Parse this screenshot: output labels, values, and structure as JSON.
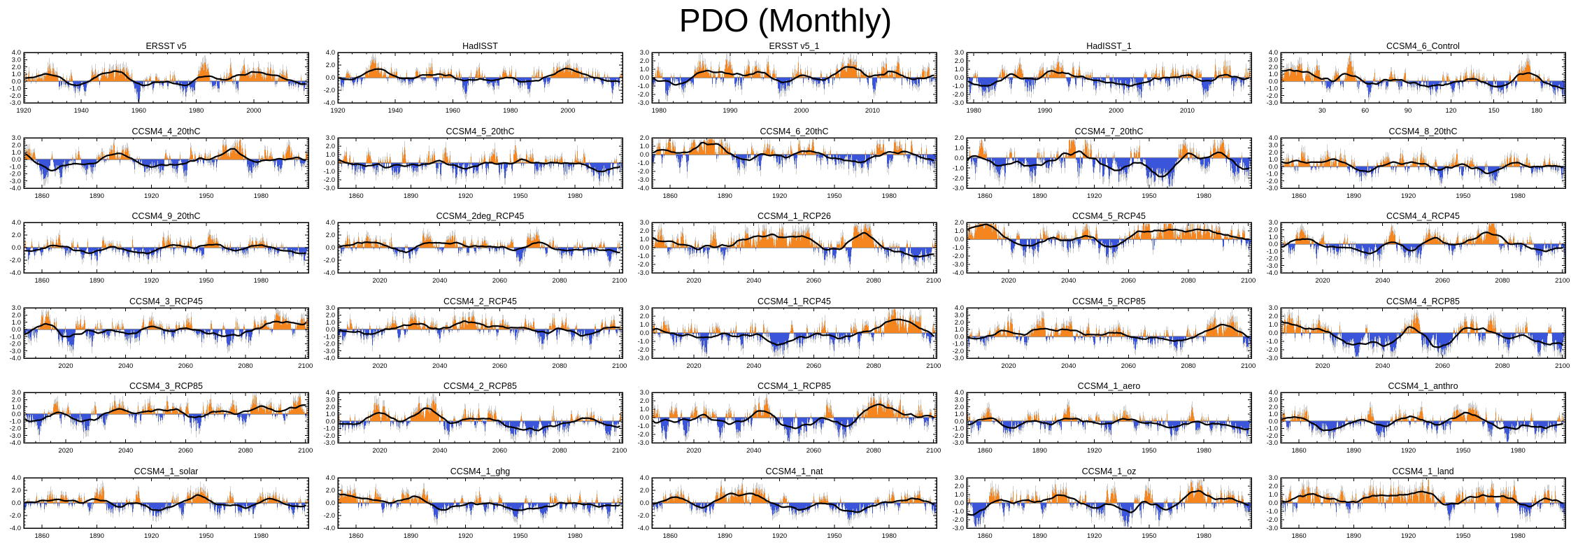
{
  "page": {
    "title": "PDO (Monthly)"
  },
  "colors": {
    "positive_bars": "#F5861F",
    "negative_bars": "#3A55D9",
    "raw_whisker": "#CFCFCF",
    "smooth_line": "#000000",
    "zero_line": "#999999",
    "frame": "#000000"
  },
  "chart_data": {
    "type": "bar+line",
    "layout": "6x5 grid of monthly PDO index panels",
    "title": "PDO (Monthly)",
    "grid": {
      "rows": 6,
      "cols": 5
    },
    "series_legend": [
      {
        "name": "monthly PDO anomaly (positive)",
        "style": "bars",
        "color": "#F5861F"
      },
      {
        "name": "monthly PDO anomaly (negative)",
        "style": "bars",
        "color": "#3A55D9"
      },
      {
        "name": "low-pass filtered PDO",
        "style": "line",
        "color": "#000000"
      },
      {
        "name": "zero reference line",
        "style": "line",
        "color": "#999999"
      }
    ],
    "panels": [
      {
        "row": 1,
        "col": 1,
        "title": "ERSST v5",
        "y_ticks": [
          4.0,
          3.0,
          2.0,
          1.0,
          0.0,
          -1.0,
          -2.0,
          -3.0
        ],
        "x_ticks": [
          1920,
          1940,
          1960,
          1980,
          2000
        ],
        "x_range": [
          1920,
          2019
        ]
      },
      {
        "row": 1,
        "col": 2,
        "title": "HadISST",
        "y_ticks": [
          4.0,
          2.0,
          0.0,
          -2.0,
          -4.0
        ],
        "x_ticks": [
          1920,
          1940,
          1960,
          1980,
          2000
        ],
        "x_range": [
          1920,
          2019
        ]
      },
      {
        "row": 1,
        "col": 3,
        "title": "ERSST v5_1",
        "y_ticks": [
          3.0,
          2.0,
          1.0,
          0.0,
          -1.0,
          -2.0,
          -3.0
        ],
        "x_ticks": [
          1980,
          1990,
          2000,
          2010
        ],
        "x_range": [
          1979,
          2019
        ]
      },
      {
        "row": 1,
        "col": 4,
        "title": "HadISST_1",
        "y_ticks": [
          3.0,
          2.0,
          1.0,
          0.0,
          -1.0,
          -2.0,
          -3.0
        ],
        "x_ticks": [
          1980,
          1990,
          2000,
          2010
        ],
        "x_range": [
          1979,
          2019
        ]
      },
      {
        "row": 1,
        "col": 5,
        "title": "CCSM4_6_Control",
        "y_ticks": [
          4.0,
          3.0,
          2.0,
          1.0,
          0.0,
          -1.0,
          -2.0,
          -3.0
        ],
        "x_ticks": [
          30,
          60,
          90,
          120,
          150,
          180
        ],
        "x_range": [
          1,
          200
        ]
      },
      {
        "row": 2,
        "col": 1,
        "title": "CCSM4_4_20thC",
        "y_ticks": [
          3.0,
          2.0,
          1.0,
          0.0,
          -1.0,
          -2.0,
          -3.0,
          -4.0
        ],
        "x_ticks": [
          1860,
          1890,
          1920,
          1950,
          1980
        ],
        "x_range": [
          1850,
          2006
        ]
      },
      {
        "row": 2,
        "col": 2,
        "title": "CCSM4_5_20thC",
        "y_ticks": [
          3.0,
          2.0,
          1.0,
          0.0,
          -1.0,
          -2.0,
          -3.0
        ],
        "x_ticks": [
          1860,
          1890,
          1920,
          1950,
          1980
        ],
        "x_range": [
          1850,
          2006
        ]
      },
      {
        "row": 2,
        "col": 3,
        "title": "CCSM4_6_20thC",
        "y_ticks": [
          2.0,
          1.0,
          0.0,
          -1.0,
          -2.0,
          -3.0,
          -4.0
        ],
        "x_ticks": [
          1860,
          1890,
          1920,
          1950,
          1980
        ],
        "x_range": [
          1850,
          2006
        ]
      },
      {
        "row": 2,
        "col": 4,
        "title": "CCSM4_7_20thC",
        "y_ticks": [
          2.0,
          1.0,
          0.0,
          -1.0,
          -2.0,
          -3.0
        ],
        "x_ticks": [
          1860,
          1890,
          1920,
          1950,
          1980
        ],
        "x_range": [
          1850,
          2006
        ]
      },
      {
        "row": 2,
        "col": 5,
        "title": "CCSM4_8_20thC",
        "y_ticks": [
          4.0,
          3.0,
          2.0,
          1.0,
          0.0,
          -1.0,
          -2.0,
          -3.0
        ],
        "x_ticks": [
          1860,
          1890,
          1920,
          1950,
          1980
        ],
        "x_range": [
          1850,
          2006
        ]
      },
      {
        "row": 3,
        "col": 1,
        "title": "CCSM4_9_20thC",
        "y_ticks": [
          4.0,
          2.0,
          0.0,
          -2.0,
          -4.0
        ],
        "x_ticks": [
          1860,
          1890,
          1920,
          1950,
          1980
        ],
        "x_range": [
          1850,
          2006
        ]
      },
      {
        "row": 3,
        "col": 2,
        "title": "CCSM4_2deg_RCP45",
        "y_ticks": [
          4.0,
          2.0,
          0.0,
          -2.0,
          -4.0
        ],
        "x_ticks": [
          2020,
          2040,
          2060,
          2080,
          2100
        ],
        "x_range": [
          2006,
          2101
        ]
      },
      {
        "row": 3,
        "col": 3,
        "title": "CCSM4_1_RCP26",
        "y_ticks": [
          3.0,
          2.0,
          1.0,
          0.0,
          -1.0,
          -2.0,
          -3.0
        ],
        "x_ticks": [
          2020,
          2040,
          2060,
          2080,
          2100
        ],
        "x_range": [
          2006,
          2101
        ]
      },
      {
        "row": 3,
        "col": 4,
        "title": "CCSM4_5_RCP45",
        "y_ticks": [
          2.0,
          1.0,
          0.0,
          -1.0,
          -2.0,
          -3.0,
          -4.0
        ],
        "x_ticks": [
          2020,
          2040,
          2060,
          2080,
          2100
        ],
        "x_range": [
          2006,
          2101
        ]
      },
      {
        "row": 3,
        "col": 5,
        "title": "CCSM4_4_RCP45",
        "y_ticks": [
          3.0,
          2.0,
          1.0,
          0.0,
          -1.0,
          -2.0,
          -3.0,
          -4.0
        ],
        "x_ticks": [
          2020,
          2040,
          2060,
          2080,
          2100
        ],
        "x_range": [
          2006,
          2101
        ]
      },
      {
        "row": 4,
        "col": 1,
        "title": "CCSM4_3_RCP45",
        "y_ticks": [
          3.0,
          2.0,
          1.0,
          0.0,
          -1.0,
          -2.0,
          -3.0,
          -4.0
        ],
        "x_ticks": [
          2020,
          2040,
          2060,
          2080,
          2100
        ],
        "x_range": [
          2006,
          2101
        ]
      },
      {
        "row": 4,
        "col": 2,
        "title": "CCSM4_2_RCP45",
        "y_ticks": [
          3.0,
          2.0,
          1.0,
          0.0,
          -1.0,
          -2.0,
          -3.0,
          -4.0
        ],
        "x_ticks": [
          2020,
          2040,
          2060,
          2080,
          2100
        ],
        "x_range": [
          2006,
          2101
        ]
      },
      {
        "row": 4,
        "col": 3,
        "title": "CCSM4_1_RCP45",
        "y_ticks": [
          3.0,
          2.0,
          1.0,
          0.0,
          -1.0,
          -2.0,
          -3.0
        ],
        "x_ticks": [
          2020,
          2040,
          2060,
          2080,
          2100
        ],
        "x_range": [
          2006,
          2101
        ]
      },
      {
        "row": 4,
        "col": 4,
        "title": "CCSM4_5_RCP85",
        "y_ticks": [
          4.0,
          3.0,
          2.0,
          1.0,
          0.0,
          -1.0,
          -2.0,
          -3.0
        ],
        "x_ticks": [
          2020,
          2040,
          2060,
          2080,
          2100
        ],
        "x_range": [
          2006,
          2101
        ]
      },
      {
        "row": 4,
        "col": 5,
        "title": "CCSM4_4_RCP85",
        "y_ticks": [
          3.0,
          2.0,
          1.0,
          0.0,
          -1.0,
          -2.0,
          -3.0
        ],
        "x_ticks": [
          2020,
          2040,
          2060,
          2080,
          2100
        ],
        "x_range": [
          2006,
          2101
        ]
      },
      {
        "row": 5,
        "col": 1,
        "title": "CCSM4_3_RCP85",
        "y_ticks": [
          3.0,
          2.0,
          1.0,
          0.0,
          -1.0,
          -2.0,
          -3.0,
          -4.0
        ],
        "x_ticks": [
          2020,
          2040,
          2060,
          2080,
          2100
        ],
        "x_range": [
          2006,
          2101
        ]
      },
      {
        "row": 5,
        "col": 2,
        "title": "CCSM4_2_RCP85",
        "y_ticks": [
          4.0,
          3.0,
          2.0,
          1.0,
          0.0,
          -1.0,
          -2.0,
          -3.0
        ],
        "x_ticks": [
          2020,
          2040,
          2060,
          2080,
          2100
        ],
        "x_range": [
          2006,
          2101
        ]
      },
      {
        "row": 5,
        "col": 3,
        "title": "CCSM4_1_RCP85",
        "y_ticks": [
          3.0,
          2.0,
          1.0,
          0.0,
          -1.0,
          -2.0,
          -3.0
        ],
        "x_ticks": [
          2020,
          2040,
          2060,
          2080,
          2100
        ],
        "x_range": [
          2006,
          2101
        ]
      },
      {
        "row": 5,
        "col": 4,
        "title": "CCSM4_1_aero",
        "y_ticks": [
          4.0,
          3.0,
          2.0,
          1.0,
          0.0,
          -1.0,
          -2.0,
          -3.0
        ],
        "x_ticks": [
          1860,
          1890,
          1920,
          1950,
          1980
        ],
        "x_range": [
          1850,
          2006
        ]
      },
      {
        "row": 5,
        "col": 5,
        "title": "CCSM4_1_anthro",
        "y_ticks": [
          4.0,
          3.0,
          2.0,
          1.0,
          0.0,
          -1.0,
          -2.0,
          -3.0
        ],
        "x_ticks": [
          1860,
          1890,
          1920,
          1950,
          1980
        ],
        "x_range": [
          1850,
          2006
        ]
      },
      {
        "row": 6,
        "col": 1,
        "title": "CCSM4_1_solar",
        "y_ticks": [
          4.0,
          2.0,
          0.0,
          -2.0,
          -4.0
        ],
        "x_ticks": [
          1860,
          1890,
          1920,
          1950,
          1980
        ],
        "x_range": [
          1850,
          2006
        ]
      },
      {
        "row": 6,
        "col": 2,
        "title": "CCSM4_1_ghg",
        "y_ticks": [
          4.0,
          2.0,
          0.0,
          -2.0,
          -4.0
        ],
        "x_ticks": [
          1860,
          1890,
          1920,
          1950,
          1980
        ],
        "x_range": [
          1850,
          2006
        ]
      },
      {
        "row": 6,
        "col": 3,
        "title": "CCSM4_1_nat",
        "y_ticks": [
          4.0,
          2.0,
          0.0,
          -2.0,
          -4.0
        ],
        "x_ticks": [
          1860,
          1890,
          1920,
          1950,
          1980
        ],
        "x_range": [
          1850,
          2006
        ]
      },
      {
        "row": 6,
        "col": 4,
        "title": "CCSM4_1_oz",
        "y_ticks": [
          3.0,
          2.0,
          1.0,
          0.0,
          -1.0,
          -2.0,
          -3.0
        ],
        "x_ticks": [
          1860,
          1890,
          1920,
          1950,
          1980
        ],
        "x_range": [
          1850,
          2006
        ]
      },
      {
        "row": 6,
        "col": 5,
        "title": "CCSM4_1_land",
        "y_ticks": [
          3.0,
          2.0,
          1.0,
          0.0,
          -1.0,
          -2.0,
          -3.0
        ],
        "x_ticks": [
          1860,
          1890,
          1920,
          1950,
          1980
        ],
        "x_range": [
          1850,
          2006
        ]
      }
    ]
  }
}
